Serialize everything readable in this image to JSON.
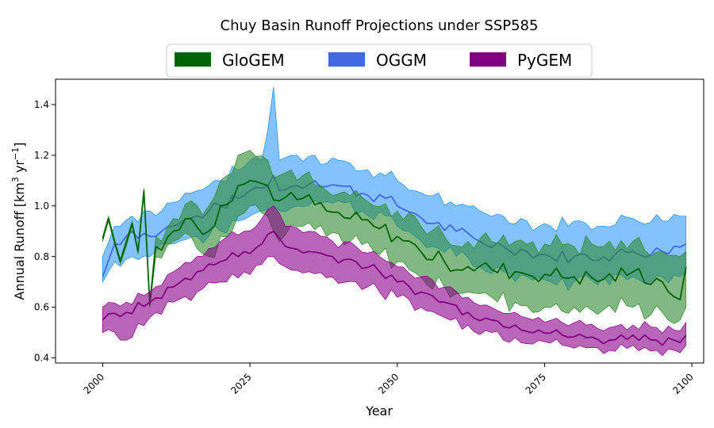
{
  "chart_data": {
    "type": "area",
    "title": "Chuy Basin Runoff Projections under SSP585",
    "xlabel": "Year",
    "ylabel": {
      "prefix": "Annual Runoff [km",
      "sup1": "3",
      "mid": " yr",
      "sup2": "−1",
      "suffix": "]"
    },
    "xlim": [
      1992,
      2102
    ],
    "ylim": [
      0.38,
      1.5
    ],
    "xticks": [
      2000,
      2025,
      2050,
      2075,
      2100
    ],
    "yticks": [
      0.4,
      0.6,
      0.8,
      1.0,
      1.2,
      1.4
    ],
    "ytick_labels": [
      "0.4",
      "0.6",
      "0.8",
      "1.0",
      "1.2",
      "1.4"
    ],
    "legend_position": "top-center",
    "x_start": 2000,
    "x_end": 2099,
    "series": [
      {
        "name": "OGGM",
        "fill_color": "#1E90FF",
        "fill_alpha": 0.55,
        "line_color": "#4169E1",
        "anchors": [
          [
            2000,
            0.72,
            0.7,
            0.8
          ],
          [
            2002,
            0.85,
            0.78,
            0.92
          ],
          [
            2005,
            0.9,
            0.8,
            0.96
          ],
          [
            2008,
            0.88,
            0.8,
            0.98
          ],
          [
            2010,
            0.9,
            0.85,
            0.98
          ],
          [
            2013,
            0.93,
            0.86,
            1.02
          ],
          [
            2016,
            0.96,
            0.88,
            1.06
          ],
          [
            2018,
            0.98,
            0.88,
            1.08
          ],
          [
            2020,
            1.0,
            0.9,
            1.1
          ],
          [
            2023,
            1.03,
            0.94,
            1.14
          ],
          [
            2025,
            1.06,
            0.96,
            1.18
          ],
          [
            2027,
            1.07,
            0.98,
            1.18
          ],
          [
            2029,
            1.12,
            1.0,
            1.47
          ],
          [
            2030,
            1.06,
            0.98,
            1.18
          ],
          [
            2033,
            1.08,
            1.0,
            1.2
          ],
          [
            2036,
            1.1,
            1.02,
            1.2
          ],
          [
            2040,
            1.08,
            1.02,
            1.18
          ],
          [
            2044,
            1.05,
            0.98,
            1.14
          ],
          [
            2048,
            1.03,
            0.96,
            1.12
          ],
          [
            2050,
            1.0,
            0.92,
            1.1
          ],
          [
            2053,
            0.97,
            0.88,
            1.06
          ],
          [
            2056,
            0.93,
            0.84,
            1.04
          ],
          [
            2060,
            0.9,
            0.8,
            1.0
          ],
          [
            2064,
            0.86,
            0.76,
            0.98
          ],
          [
            2068,
            0.84,
            0.74,
            0.96
          ],
          [
            2072,
            0.82,
            0.72,
            0.94
          ],
          [
            2076,
            0.8,
            0.7,
            0.92
          ],
          [
            2080,
            0.8,
            0.7,
            0.94
          ],
          [
            2085,
            0.8,
            0.72,
            0.92
          ],
          [
            2090,
            0.82,
            0.72,
            0.95
          ],
          [
            2095,
            0.82,
            0.72,
            0.94
          ],
          [
            2099,
            0.85,
            0.74,
            0.96
          ]
        ],
        "noise": 0.025
      },
      {
        "name": "GloGEM",
        "fill_color": "#2E8B2E",
        "fill_alpha": 0.6,
        "line_color": "#006400",
        "anchors": [
          [
            2000,
            0.87,
            0.86,
            0.88
          ],
          [
            2001,
            0.95,
            0.94,
            0.96
          ],
          [
            2002,
            0.86,
            0.85,
            0.87
          ],
          [
            2003,
            0.78,
            0.77,
            0.79
          ],
          [
            2005,
            0.93,
            0.92,
            0.94
          ],
          [
            2006,
            0.82,
            0.81,
            0.83
          ],
          [
            2007,
            1.06,
            1.05,
            1.07
          ],
          [
            2008,
            0.61,
            0.6,
            0.62
          ],
          [
            2009,
            0.84,
            0.8,
            0.88
          ],
          [
            2012,
            0.9,
            0.86,
            0.95
          ],
          [
            2015,
            0.95,
            0.88,
            1.02
          ],
          [
            2018,
            0.9,
            0.8,
            1.0
          ],
          [
            2020,
            1.0,
            0.88,
            1.1
          ],
          [
            2023,
            1.08,
            0.96,
            1.2
          ],
          [
            2025,
            1.1,
            1.0,
            1.22
          ],
          [
            2028,
            1.08,
            0.96,
            1.18
          ],
          [
            2030,
            1.02,
            0.86,
            1.12
          ],
          [
            2034,
            1.03,
            0.92,
            1.12
          ],
          [
            2038,
            0.98,
            0.88,
            1.06
          ],
          [
            2042,
            0.95,
            0.86,
            1.04
          ],
          [
            2046,
            0.92,
            0.82,
            1.0
          ],
          [
            2050,
            0.88,
            0.78,
            0.98
          ],
          [
            2054,
            0.82,
            0.72,
            0.92
          ],
          [
            2058,
            0.78,
            0.68,
            0.88
          ],
          [
            2062,
            0.76,
            0.66,
            0.86
          ],
          [
            2066,
            0.75,
            0.64,
            0.86
          ],
          [
            2070,
            0.74,
            0.62,
            0.86
          ],
          [
            2075,
            0.73,
            0.6,
            0.85
          ],
          [
            2080,
            0.72,
            0.6,
            0.84
          ],
          [
            2085,
            0.71,
            0.59,
            0.84
          ],
          [
            2090,
            0.74,
            0.6,
            0.86
          ],
          [
            2095,
            0.7,
            0.58,
            0.82
          ],
          [
            2098,
            0.63,
            0.55,
            0.8
          ],
          [
            2099,
            0.76,
            0.6,
            0.82
          ]
        ],
        "noise": 0.035
      },
      {
        "name": "PyGEM",
        "fill_color": "#8B008B",
        "fill_alpha": 0.6,
        "line_color": "#800080",
        "anchors": [
          [
            2000,
            0.55,
            0.5,
            0.6
          ],
          [
            2004,
            0.58,
            0.47,
            0.62
          ],
          [
            2008,
            0.62,
            0.56,
            0.66
          ],
          [
            2012,
            0.68,
            0.62,
            0.74
          ],
          [
            2016,
            0.74,
            0.66,
            0.8
          ],
          [
            2020,
            0.78,
            0.7,
            0.86
          ],
          [
            2024,
            0.82,
            0.74,
            0.9
          ],
          [
            2027,
            0.85,
            0.77,
            0.95
          ],
          [
            2029,
            0.9,
            0.8,
            1.0
          ],
          [
            2031,
            0.84,
            0.76,
            0.92
          ],
          [
            2035,
            0.82,
            0.74,
            0.9
          ],
          [
            2039,
            0.8,
            0.72,
            0.86
          ],
          [
            2043,
            0.78,
            0.7,
            0.84
          ],
          [
            2047,
            0.74,
            0.66,
            0.8
          ],
          [
            2050,
            0.7,
            0.64,
            0.76
          ],
          [
            2054,
            0.66,
            0.6,
            0.72
          ],
          [
            2058,
            0.62,
            0.56,
            0.68
          ],
          [
            2062,
            0.58,
            0.53,
            0.64
          ],
          [
            2066,
            0.55,
            0.5,
            0.6
          ],
          [
            2070,
            0.53,
            0.48,
            0.58
          ],
          [
            2074,
            0.51,
            0.47,
            0.56
          ],
          [
            2078,
            0.49,
            0.45,
            0.54
          ],
          [
            2082,
            0.48,
            0.44,
            0.53
          ],
          [
            2086,
            0.47,
            0.43,
            0.52
          ],
          [
            2090,
            0.49,
            0.45,
            0.53
          ],
          [
            2094,
            0.47,
            0.43,
            0.52
          ],
          [
            2097,
            0.47,
            0.43,
            0.51
          ],
          [
            2099,
            0.49,
            0.45,
            0.54
          ]
        ],
        "noise": 0.02
      }
    ]
  }
}
